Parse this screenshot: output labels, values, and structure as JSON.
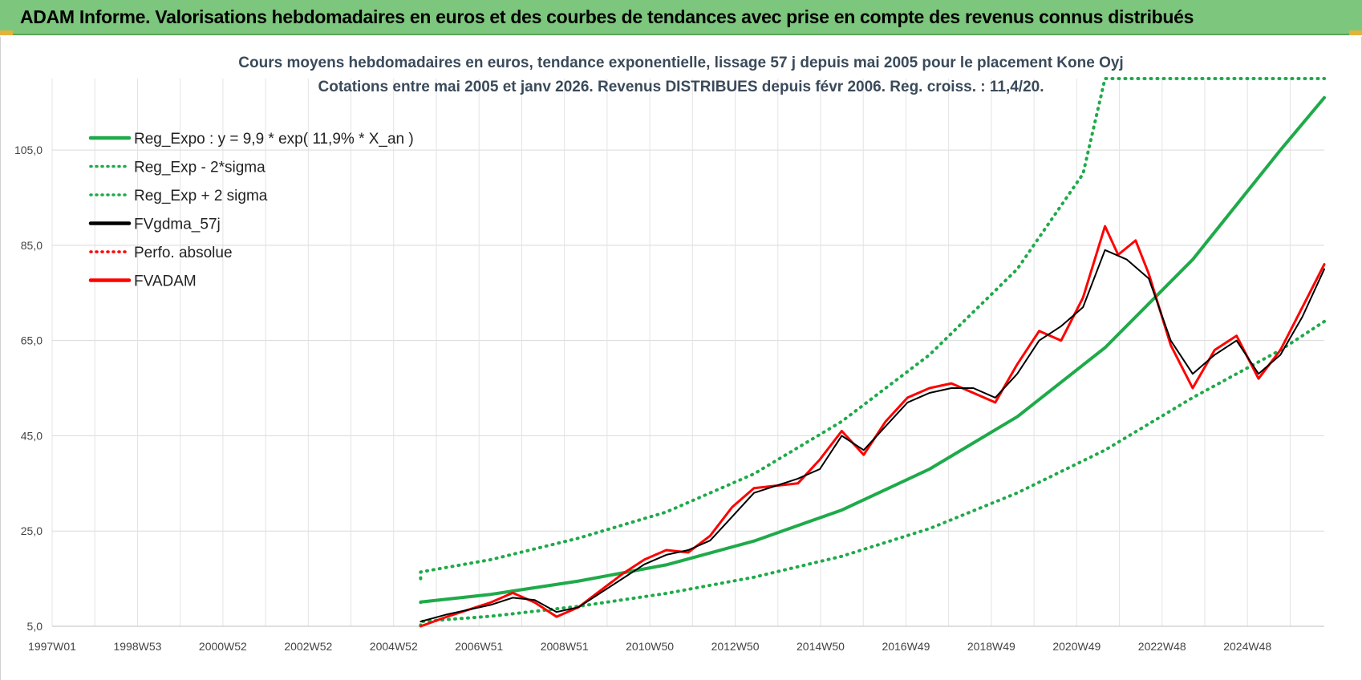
{
  "header": {
    "title": "ADAM Informe. Valorisations hebdomadaires en euros et des courbes de tendances avec prise en compte des revenus connus distribués"
  },
  "colors": {
    "header_bg": "#7dc67d",
    "reg_green": "#1faa4a",
    "fvgdma": "#000000",
    "fvadam": "#ff0000"
  },
  "chart_data": {
    "type": "line",
    "title": "Cours moyens hebdomadaires en euros, tendance exponentielle, lissage 57 j depuis mai 2005 pour le placement Kone Oyj",
    "subtitle": "Cotations entre mai 2005 et janv 2026. Revenus DISTRIBUES depuis févr 2006. Reg. croiss. : 11,4/20.",
    "x_tick_labels": [
      "1997W01",
      "1998W53",
      "2000W52",
      "2002W52",
      "2004W52",
      "2006W51",
      "2008W51",
      "2010W50",
      "2012W50",
      "2014W50",
      "2016W49",
      "2018W49",
      "2020W49",
      "2022W48",
      "2024W48"
    ],
    "x_range": [
      1997.0,
      2026.0
    ],
    "y_tick_labels": [
      "5,0",
      "25,0",
      "45,0",
      "65,0",
      "85,0",
      "105,0"
    ],
    "y_ticks": [
      5,
      25,
      45,
      65,
      85,
      105
    ],
    "ylim": [
      5,
      120
    ],
    "grid": true,
    "legend_position": "top-left",
    "series": [
      {
        "name": "Reg_Expo : y = 9,9 * exp( 11,9% *  X_an )",
        "style": "solid",
        "color": "#1faa4a",
        "points": [
          [
            2005.4,
            10.0
          ],
          [
            2005.4,
            10.1
          ],
          [
            2007,
            11.7
          ],
          [
            2009,
            14.5
          ],
          [
            2011,
            17.9
          ],
          [
            2013,
            22.9
          ],
          [
            2015,
            29.4
          ],
          [
            2017,
            38.0
          ],
          [
            2019,
            49.0
          ],
          [
            2021,
            63.5
          ],
          [
            2023,
            82.0
          ],
          [
            2025,
            105.0
          ],
          [
            2026,
            116.0
          ]
        ]
      },
      {
        "name": "Reg_Exp - 2*sigma",
        "style": "dotted",
        "color": "#1faa4a",
        "points": [
          [
            2005.4,
            5.1
          ],
          [
            2005.4,
            6.0
          ],
          [
            2007,
            7.1
          ],
          [
            2009,
            9.2
          ],
          [
            2011,
            11.9
          ],
          [
            2013,
            15.3
          ],
          [
            2015,
            19.7
          ],
          [
            2017,
            25.5
          ],
          [
            2019,
            33.0
          ],
          [
            2021,
            42.0
          ],
          [
            2023,
            53.0
          ],
          [
            2025,
            63.0
          ],
          [
            2026,
            69.0
          ]
        ]
      },
      {
        "name": "Reg_Exp + 2 sigma",
        "style": "dotted",
        "color": "#1faa4a",
        "points": [
          [
            2005.4,
            15.0
          ],
          [
            2005.4,
            16.4
          ],
          [
            2007,
            19.0
          ],
          [
            2009,
            23.5
          ],
          [
            2011,
            29.0
          ],
          [
            2013,
            37.0
          ],
          [
            2015,
            48.0
          ],
          [
            2017,
            62.0
          ],
          [
            2019,
            80.0
          ],
          [
            2020.5,
            100.0
          ],
          [
            2021.0,
            120.0
          ],
          [
            2026,
            120.0
          ]
        ]
      },
      {
        "name": "FVgdma_57j",
        "style": "solid",
        "color": "#000000",
        "points": [
          [
            2005.4,
            6.0
          ],
          [
            2006,
            7.5
          ],
          [
            2007,
            9.5
          ],
          [
            2007.5,
            11.0
          ],
          [
            2008,
            10.5
          ],
          [
            2008.5,
            8.0
          ],
          [
            2009,
            9.0
          ],
          [
            2010,
            15.0
          ],
          [
            2010.5,
            18.0
          ],
          [
            2011,
            20.0
          ],
          [
            2011.5,
            21.0
          ],
          [
            2012,
            23.0
          ],
          [
            2012.5,
            28.0
          ],
          [
            2013,
            33.0
          ],
          [
            2014,
            36.0
          ],
          [
            2014.5,
            38.0
          ],
          [
            2015,
            45.0
          ],
          [
            2015.5,
            42.0
          ],
          [
            2016,
            47.0
          ],
          [
            2016.5,
            52.0
          ],
          [
            2017,
            54.0
          ],
          [
            2017.5,
            55.0
          ],
          [
            2018,
            55.0
          ],
          [
            2018.5,
            53.0
          ],
          [
            2019,
            58.0
          ],
          [
            2019.5,
            65.0
          ],
          [
            2020,
            68.0
          ],
          [
            2020.5,
            72.0
          ],
          [
            2021,
            84.0
          ],
          [
            2021.5,
            82.0
          ],
          [
            2022,
            78.0
          ],
          [
            2022.5,
            65.0
          ],
          [
            2023,
            58.0
          ],
          [
            2023.5,
            62.0
          ],
          [
            2024,
            65.0
          ],
          [
            2024.5,
            58.0
          ],
          [
            2025,
            62.0
          ],
          [
            2025.5,
            70.0
          ],
          [
            2026,
            80.0
          ]
        ]
      },
      {
        "name": "Perfo. absolue",
        "style": "dotted",
        "color": "#ff0000",
        "points": []
      },
      {
        "name": "FVADAM",
        "style": "solid",
        "color": "#ff0000",
        "points": [
          [
            2005.4,
            5.0
          ],
          [
            2006,
            7.0
          ],
          [
            2007,
            10.0
          ],
          [
            2007.5,
            12.0
          ],
          [
            2008,
            10.0
          ],
          [
            2008.5,
            7.0
          ],
          [
            2009,
            9.0
          ],
          [
            2010,
            16.0
          ],
          [
            2010.5,
            19.0
          ],
          [
            2011,
            21.0
          ],
          [
            2011.5,
            20.5
          ],
          [
            2012,
            24.0
          ],
          [
            2012.5,
            30.0
          ],
          [
            2013,
            34.0
          ],
          [
            2014,
            35.0
          ],
          [
            2014.5,
            40.0
          ],
          [
            2015,
            46.0
          ],
          [
            2015.5,
            41.0
          ],
          [
            2016,
            48.0
          ],
          [
            2016.5,
            53.0
          ],
          [
            2017,
            55.0
          ],
          [
            2017.5,
            56.0
          ],
          [
            2018,
            54.0
          ],
          [
            2018.5,
            52.0
          ],
          [
            2019,
            60.0
          ],
          [
            2019.5,
            67.0
          ],
          [
            2020,
            65.0
          ],
          [
            2020.5,
            74.0
          ],
          [
            2021,
            89.0
          ],
          [
            2021.3,
            83.0
          ],
          [
            2021.7,
            86.0
          ],
          [
            2022,
            79.0
          ],
          [
            2022.5,
            64.0
          ],
          [
            2023,
            55.0
          ],
          [
            2023.5,
            63.0
          ],
          [
            2024,
            66.0
          ],
          [
            2024.5,
            57.0
          ],
          [
            2025,
            63.0
          ],
          [
            2025.5,
            72.0
          ],
          [
            2026,
            81.0
          ]
        ]
      }
    ]
  }
}
